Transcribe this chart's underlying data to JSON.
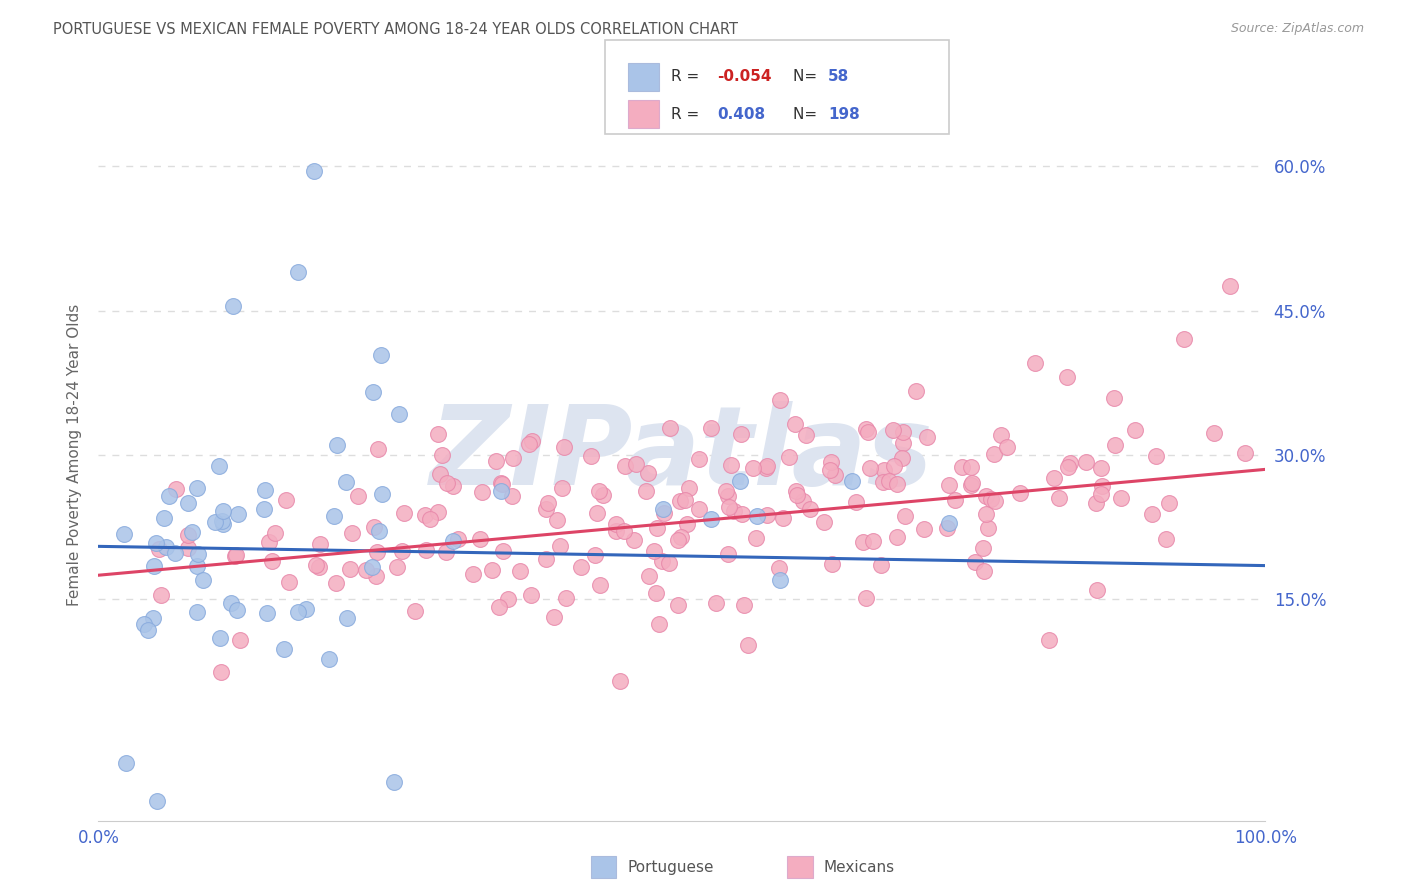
{
  "title": "PORTUGUESE VS MEXICAN FEMALE POVERTY AMONG 18-24 YEAR OLDS CORRELATION CHART",
  "source": "Source: ZipAtlas.com",
  "ylabel": "Female Poverty Among 18-24 Year Olds",
  "xlim": [
    0.0,
    1.0
  ],
  "ylim": [
    -0.08,
    0.68
  ],
  "yticks": [
    0.15,
    0.3,
    0.45,
    0.6
  ],
  "ytick_labels": [
    "15.0%",
    "30.0%",
    "45.0%",
    "60.0%"
  ],
  "xticks": [
    0.0,
    0.25,
    0.5,
    0.75,
    1.0
  ],
  "xtick_labels": [
    "0.0%",
    "",
    "",
    "",
    "100.0%"
  ],
  "r_portuguese": -0.054,
  "n_portuguese": 58,
  "r_mexican": 0.408,
  "n_mexican": 198,
  "portuguese_color": "#aac4e8",
  "portuguese_edge_color": "#88aadd",
  "mexican_color": "#f4adc0",
  "mexican_edge_color": "#e888aa",
  "portuguese_line_color": "#3366bb",
  "mexican_line_color": "#dd4466",
  "title_color": "#555555",
  "tick_color": "#4466cc",
  "watermark_color": "#dde4f0",
  "watermark_text": "ZIPatlas",
  "background_color": "#ffffff",
  "grid_color": "#dddddd",
  "seed": 42,
  "port_trend_x0": 0.0,
  "port_trend_y0": 0.205,
  "port_trend_x1": 1.0,
  "port_trend_y1": 0.185,
  "mex_trend_x0": 0.0,
  "mex_trend_y0": 0.175,
  "mex_trend_x1": 1.0,
  "mex_trend_y1": 0.285
}
